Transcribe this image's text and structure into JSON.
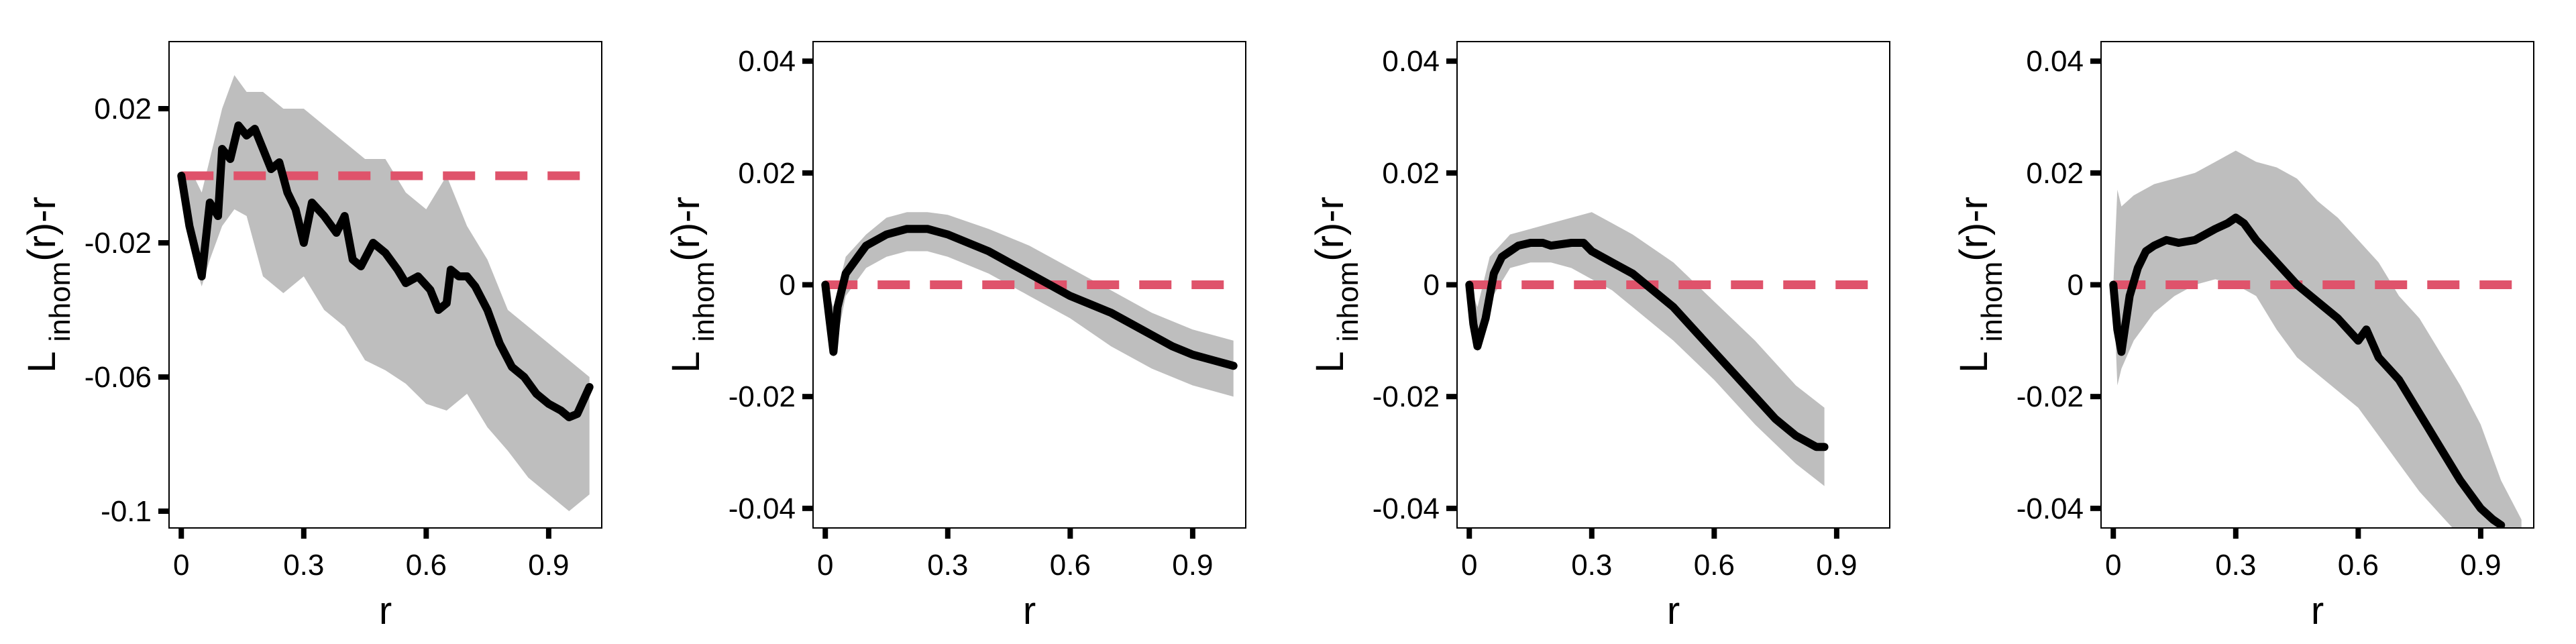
{
  "chart_data": [
    {
      "type": "line",
      "xlabel": "r",
      "ylabel": {
        "main": "L",
        "sub": "inhom",
        "suffix": "(r)-r"
      },
      "xlim": [
        -0.03,
        1.03
      ],
      "ylim": [
        -0.105,
        0.04
      ],
      "xticks": [
        0,
        0.3,
        0.6,
        0.9
      ],
      "xtick_labels": [
        "0",
        "0.3",
        "0.6",
        "0.9"
      ],
      "yticks": [
        0.02,
        -0.02,
        -0.06,
        -0.1
      ],
      "ytick_labels": [
        "0.02",
        "-0.02",
        "-0.06",
        "-0.1"
      ],
      "colors": {
        "observed": "#000000",
        "theoretical": "#DF536B",
        "envelope": "#BEBEBE"
      },
      "series": [
        {
          "kind": "observed",
          "x": [
            0,
            0.02,
            0.04,
            0.05,
            0.07,
            0.09,
            0.1,
            0.12,
            0.14,
            0.16,
            0.18,
            0.2,
            0.22,
            0.24,
            0.26,
            0.28,
            0.3,
            0.32,
            0.35,
            0.38,
            0.4,
            0.42,
            0.44,
            0.47,
            0.5,
            0.53,
            0.55,
            0.58,
            0.61,
            0.63,
            0.65,
            0.66,
            0.68,
            0.7,
            0.72,
            0.75,
            0.78,
            0.81,
            0.84,
            0.87,
            0.9,
            0.93,
            0.95,
            0.97,
            1.0
          ],
          "y": [
            0,
            -0.015,
            -0.025,
            -0.03,
            -0.008,
            -0.012,
            0.008,
            0.005,
            0.015,
            0.012,
            0.014,
            0.008,
            0.002,
            0.004,
            -0.005,
            -0.01,
            -0.02,
            -0.008,
            -0.012,
            -0.017,
            -0.012,
            -0.025,
            -0.027,
            -0.02,
            -0.023,
            -0.028,
            -0.032,
            -0.03,
            -0.034,
            -0.04,
            -0.038,
            -0.028,
            -0.03,
            -0.03,
            -0.033,
            -0.04,
            -0.05,
            -0.057,
            -0.06,
            -0.065,
            -0.068,
            -0.07,
            -0.072,
            -0.071,
            -0.063
          ]
        },
        {
          "kind": "envelope",
          "x": [
            0,
            0.03,
            0.05,
            0.07,
            0.1,
            0.13,
            0.16,
            0.2,
            0.25,
            0.3,
            0.35,
            0.4,
            0.45,
            0.5,
            0.55,
            0.6,
            0.65,
            0.7,
            0.75,
            0.8,
            0.85,
            0.9,
            0.95,
            1.0
          ],
          "upper": [
            0,
            0,
            -0.005,
            0.005,
            0.02,
            0.03,
            0.025,
            0.025,
            0.02,
            0.02,
            0.015,
            0.01,
            0.005,
            0.005,
            -0.005,
            -0.01,
            0,
            -0.015,
            -0.025,
            -0.04,
            -0.045,
            -0.05,
            -0.055,
            -0.06
          ],
          "lower": [
            0,
            -0.025,
            -0.033,
            -0.025,
            -0.015,
            -0.01,
            -0.012,
            -0.03,
            -0.035,
            -0.03,
            -0.04,
            -0.045,
            -0.055,
            -0.058,
            -0.062,
            -0.068,
            -0.07,
            -0.065,
            -0.075,
            -0.082,
            -0.09,
            -0.095,
            -0.1,
            -0.095
          ]
        },
        {
          "kind": "theoretical",
          "x": [
            0,
            1.0
          ],
          "y": [
            0,
            0
          ]
        }
      ]
    },
    {
      "type": "line",
      "xlabel": "r",
      "ylabel": {
        "main": "L",
        "sub": "inhom",
        "suffix": "(r)-r"
      },
      "xlim": [
        -0.03,
        1.03
      ],
      "ylim": [
        -0.0435,
        0.0435
      ],
      "xticks": [
        0,
        0.3,
        0.6,
        0.9
      ],
      "xtick_labels": [
        "0",
        "0.3",
        "0.6",
        "0.9"
      ],
      "yticks": [
        0.04,
        0.02,
        0,
        -0.02,
        -0.04
      ],
      "ytick_labels": [
        "0.04",
        "0.02",
        "0",
        "-0.02",
        "-0.04"
      ],
      "colors": {
        "observed": "#000000",
        "theoretical": "#DF536B",
        "envelope": "#BEBEBE"
      },
      "series": [
        {
          "kind": "observed",
          "x": [
            0,
            0.01,
            0.02,
            0.03,
            0.05,
            0.08,
            0.1,
            0.15,
            0.2,
            0.25,
            0.3,
            0.35,
            0.4,
            0.45,
            0.5,
            0.55,
            0.6,
            0.65,
            0.7,
            0.75,
            0.8,
            0.85,
            0.9,
            0.95,
            1.0
          ],
          "y": [
            0,
            -0.006,
            -0.012,
            -0.004,
            0.002,
            0.005,
            0.007,
            0.009,
            0.01,
            0.01,
            0.009,
            0.0075,
            0.006,
            0.004,
            0.002,
            0,
            -0.002,
            -0.0035,
            -0.005,
            -0.007,
            -0.009,
            -0.011,
            -0.0125,
            -0.0135,
            -0.0145
          ]
        },
        {
          "kind": "envelope",
          "x": [
            0,
            0.02,
            0.05,
            0.1,
            0.15,
            0.2,
            0.25,
            0.3,
            0.4,
            0.5,
            0.6,
            0.7,
            0.8,
            0.9,
            1.0
          ],
          "upper": [
            0,
            -0.004,
            0.005,
            0.009,
            0.012,
            0.013,
            0.013,
            0.0125,
            0.01,
            0.007,
            0.003,
            -0.001,
            -0.005,
            -0.008,
            -0.01
          ],
          "lower": [
            0,
            -0.013,
            -0.002,
            0.003,
            0.005,
            0.006,
            0.006,
            0.005,
            0.002,
            -0.002,
            -0.006,
            -0.011,
            -0.015,
            -0.018,
            -0.02
          ]
        },
        {
          "kind": "theoretical",
          "x": [
            0,
            1.0
          ],
          "y": [
            0,
            0
          ]
        }
      ]
    },
    {
      "type": "line",
      "xlabel": "r",
      "ylabel": {
        "main": "L",
        "sub": "inhom",
        "suffix": "(r)-r"
      },
      "xlim": [
        -0.03,
        1.03
      ],
      "ylim": [
        -0.0435,
        0.0435
      ],
      "xticks": [
        0,
        0.3,
        0.6,
        0.9
      ],
      "xtick_labels": [
        "0",
        "0.3",
        "0.6",
        "0.9"
      ],
      "yticks": [
        0.04,
        0.02,
        0,
        -0.02,
        -0.04
      ],
      "ytick_labels": [
        "0.04",
        "0.02",
        "0",
        "-0.02",
        "-0.04"
      ],
      "colors": {
        "observed": "#000000",
        "theoretical": "#DF536B",
        "envelope": "#BEBEBE"
      },
      "series": [
        {
          "kind": "observed",
          "x": [
            0,
            0.01,
            0.02,
            0.04,
            0.06,
            0.08,
            0.1,
            0.12,
            0.15,
            0.18,
            0.2,
            0.25,
            0.28,
            0.3,
            0.35,
            0.4,
            0.45,
            0.5,
            0.55,
            0.6,
            0.65,
            0.7,
            0.75,
            0.8,
            0.85,
            0.87
          ],
          "y": [
            0,
            -0.007,
            -0.011,
            -0.006,
            0.002,
            0.005,
            0.006,
            0.007,
            0.0075,
            0.0075,
            0.007,
            0.0075,
            0.0075,
            0.006,
            0.004,
            0.002,
            -0.001,
            -0.004,
            -0.008,
            -0.012,
            -0.016,
            -0.02,
            -0.024,
            -0.027,
            -0.029,
            -0.029
          ]
        },
        {
          "kind": "envelope",
          "x": [
            0,
            0.02,
            0.05,
            0.1,
            0.15,
            0.2,
            0.25,
            0.3,
            0.35,
            0.4,
            0.5,
            0.6,
            0.7,
            0.8,
            0.87
          ],
          "upper": [
            0,
            -0.004,
            0.005,
            0.009,
            0.01,
            0.011,
            0.012,
            0.013,
            0.011,
            0.009,
            0.004,
            -0.003,
            -0.01,
            -0.018,
            -0.022
          ],
          "lower": [
            0,
            -0.012,
            -0.003,
            0.003,
            0.004,
            0.004,
            0.003,
            0.001,
            -0.001,
            -0.004,
            -0.01,
            -0.017,
            -0.025,
            -0.032,
            -0.036
          ]
        },
        {
          "kind": "theoretical",
          "x": [
            0,
            1.0
          ],
          "y": [
            0,
            0
          ]
        }
      ]
    },
    {
      "type": "line",
      "xlabel": "r",
      "ylabel": {
        "main": "L",
        "sub": "inhom",
        "suffix": "(r)-r"
      },
      "xlim": [
        -0.03,
        1.03
      ],
      "ylim": [
        -0.0435,
        0.0435
      ],
      "xticks": [
        0,
        0.3,
        0.6,
        0.9
      ],
      "xtick_labels": [
        "0",
        "0.3",
        "0.6",
        "0.9"
      ],
      "yticks": [
        0.04,
        0.02,
        0,
        -0.02,
        -0.04
      ],
      "ytick_labels": [
        "0.04",
        "0.02",
        "0",
        "-0.02",
        "-0.04"
      ],
      "colors": {
        "observed": "#000000",
        "theoretical": "#DF536B",
        "envelope": "#BEBEBE"
      },
      "series": [
        {
          "kind": "observed",
          "x": [
            0,
            0.01,
            0.02,
            0.04,
            0.06,
            0.08,
            0.1,
            0.13,
            0.16,
            0.2,
            0.25,
            0.28,
            0.3,
            0.32,
            0.35,
            0.4,
            0.45,
            0.5,
            0.55,
            0.6,
            0.62,
            0.65,
            0.7,
            0.75,
            0.8,
            0.85,
            0.9,
            0.93,
            0.95
          ],
          "y": [
            0,
            -0.008,
            -0.012,
            -0.002,
            0.003,
            0.006,
            0.007,
            0.008,
            0.0075,
            0.008,
            0.01,
            0.011,
            0.012,
            0.011,
            0.008,
            0.004,
            0,
            -0.003,
            -0.006,
            -0.01,
            -0.008,
            -0.013,
            -0.017,
            -0.023,
            -0.029,
            -0.035,
            -0.04,
            -0.042,
            -0.043
          ]
        },
        {
          "kind": "envelope",
          "x": [
            0,
            0.01,
            0.02,
            0.05,
            0.1,
            0.15,
            0.2,
            0.25,
            0.3,
            0.35,
            0.4,
            0.45,
            0.5,
            0.55,
            0.6,
            0.65,
            0.7,
            0.75,
            0.8,
            0.85,
            0.9,
            0.95,
            1.0
          ],
          "upper": [
            0,
            0.017,
            0.014,
            0.016,
            0.018,
            0.019,
            0.02,
            0.022,
            0.024,
            0.022,
            0.021,
            0.019,
            0.015,
            0.012,
            0.008,
            0.004,
            -0.002,
            -0.006,
            -0.012,
            -0.018,
            -0.025,
            -0.035,
            -0.042
          ],
          "lower": [
            0,
            -0.018,
            -0.015,
            -0.01,
            -0.005,
            -0.002,
            0,
            0.001,
            0,
            -0.002,
            -0.008,
            -0.013,
            -0.016,
            -0.019,
            -0.022,
            -0.027,
            -0.032,
            -0.037,
            -0.041,
            -0.045,
            -0.05,
            -0.05,
            -0.05
          ]
        },
        {
          "kind": "theoretical",
          "x": [
            0,
            1.0
          ],
          "y": [
            0,
            0
          ]
        }
      ]
    }
  ]
}
